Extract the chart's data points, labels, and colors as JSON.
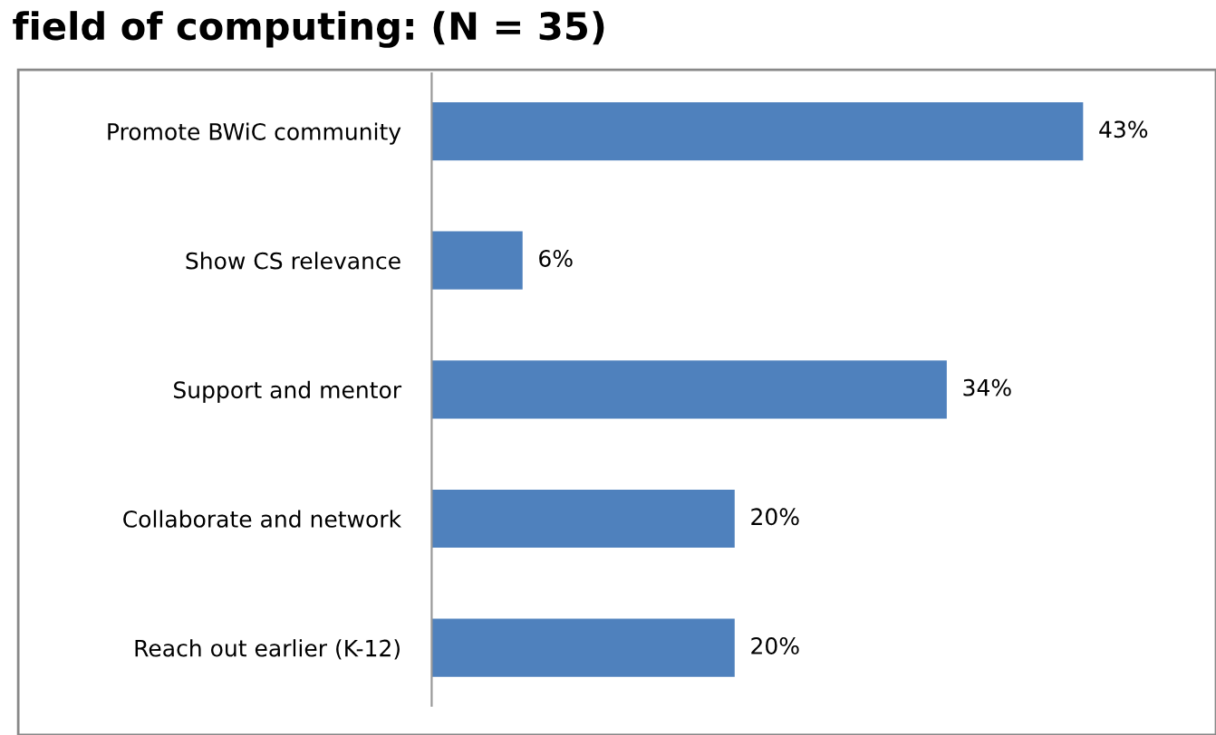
{
  "chart_data": {
    "type": "bar",
    "orientation": "horizontal",
    "title": "field of computing: (N = 35)",
    "categories": [
      "Promote BWiC community",
      "Show CS relevance",
      "Support and mentor",
      "Collaborate and network",
      "Reach out earlier (K-12)"
    ],
    "values": [
      43,
      6,
      34,
      20,
      20
    ],
    "value_labels": [
      "43%",
      "6%",
      "34%",
      "20%",
      "20%"
    ],
    "color": "#4f81bd",
    "grid": false,
    "legend": false
  }
}
